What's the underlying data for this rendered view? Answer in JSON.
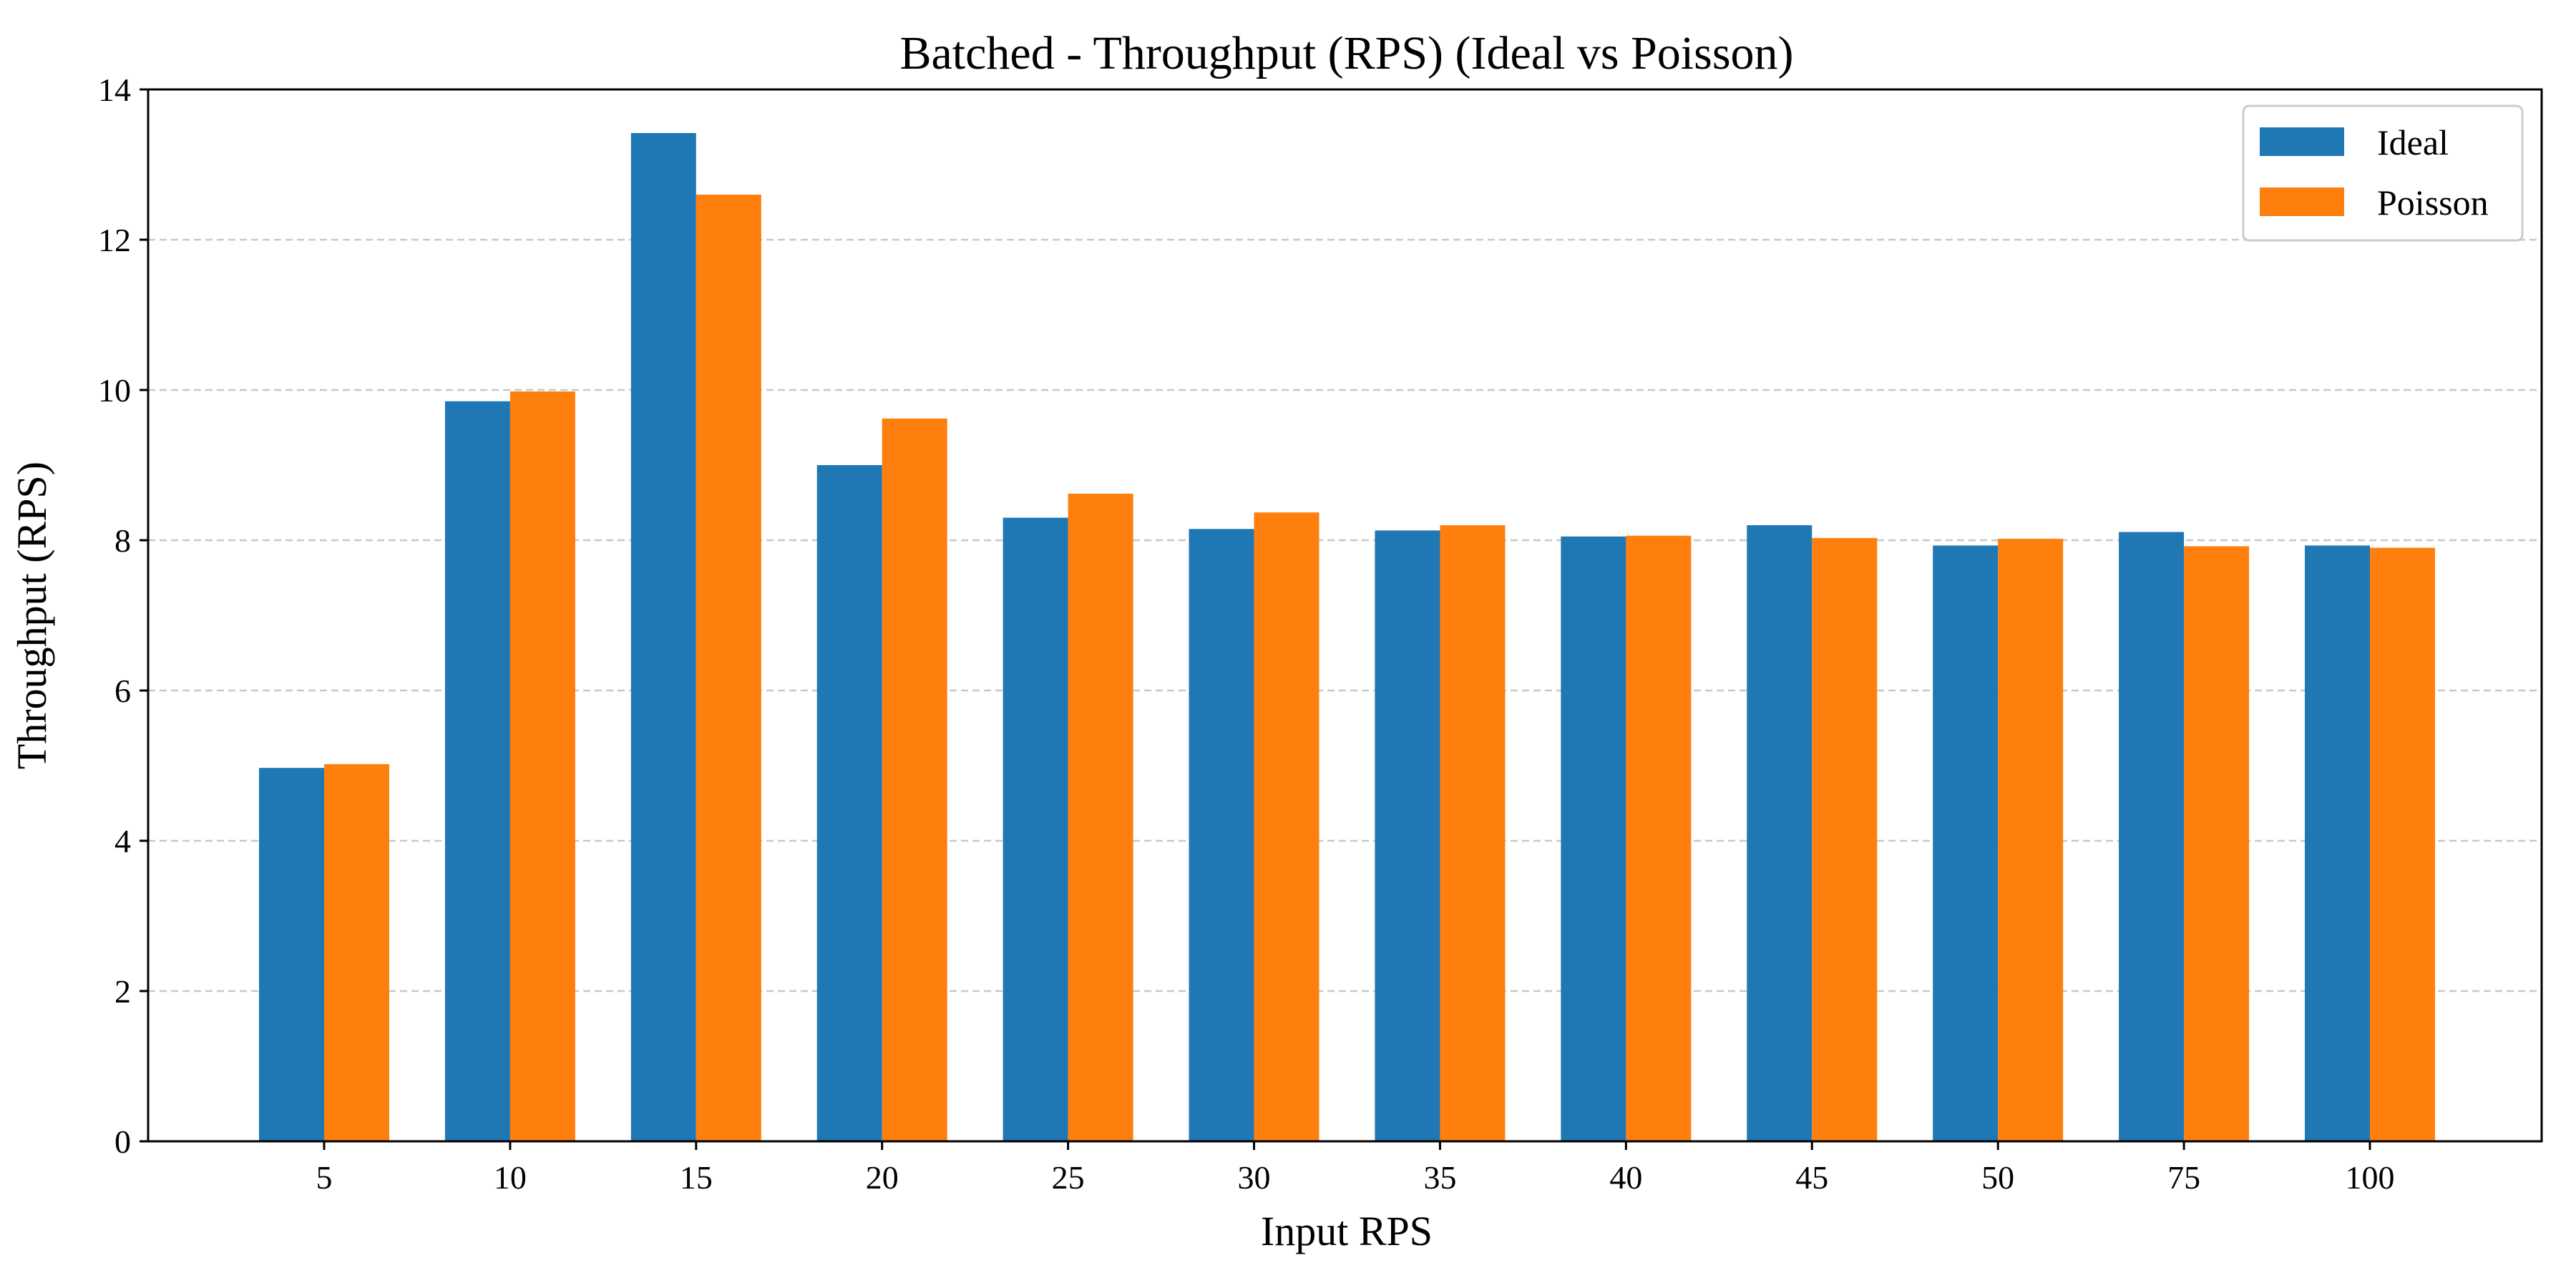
{
  "chart_data": {
    "type": "bar",
    "title": "Batched - Throughput (RPS) (Ideal vs Poisson)",
    "xlabel": "Input RPS",
    "ylabel": "Throughput (RPS)",
    "categories": [
      "5",
      "10",
      "15",
      "20",
      "25",
      "30",
      "35",
      "40",
      "45",
      "50",
      "75",
      "100"
    ],
    "series": [
      {
        "name": "Ideal",
        "color": "#1f77b4",
        "values": [
          4.97,
          9.85,
          13.42,
          9.0,
          8.3,
          8.15,
          8.13,
          8.05,
          8.2,
          7.93,
          8.11,
          7.93
        ]
      },
      {
        "name": "Poisson",
        "color": "#ff7f0e",
        "values": [
          5.02,
          9.98,
          12.6,
          9.62,
          8.62,
          8.37,
          8.2,
          8.06,
          8.03,
          8.02,
          7.92,
          7.9
        ]
      }
    ],
    "ylim": [
      0,
      14
    ],
    "yticks": [
      "0",
      "2",
      "4",
      "6",
      "8",
      "10",
      "12",
      "14"
    ],
    "grid": "y-dashed",
    "legend_position": "top-right"
  }
}
